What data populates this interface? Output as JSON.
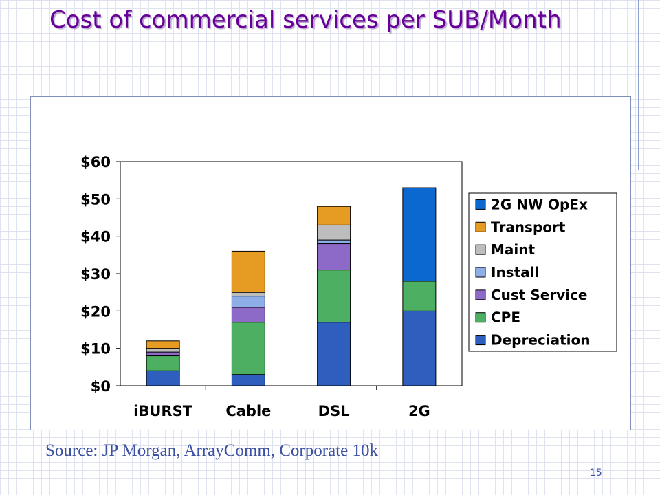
{
  "slide": {
    "title": "Cost of commercial services per SUB/Month",
    "source": "Source: JP Morgan, ArrayComm, Corporate 10k",
    "page_number": "15"
  },
  "chart_data": {
    "type": "bar",
    "stacked": true,
    "title": "",
    "xlabel": "",
    "ylabel": "",
    "ylim": [
      0,
      60
    ],
    "yticks": [
      0,
      10,
      20,
      30,
      40,
      50,
      60
    ],
    "ytick_labels": [
      "$0",
      "$10",
      "$20",
      "$30",
      "$40",
      "$50",
      "$60"
    ],
    "grid": false,
    "legend_position": "right",
    "categories": [
      "iBURST",
      "Cable",
      "DSL",
      "2G"
    ],
    "series": [
      {
        "name": "Depreciation",
        "color": "#2e5fbf",
        "values": [
          4,
          3,
          17,
          20
        ]
      },
      {
        "name": "CPE",
        "color": "#4daf62",
        "values": [
          4,
          14,
          14,
          8
        ]
      },
      {
        "name": "Cust Service",
        "color": "#8e6ac8",
        "values": [
          1,
          4,
          7,
          0
        ]
      },
      {
        "name": "Install",
        "color": "#8eaee8",
        "values": [
          0,
          3,
          1,
          0
        ]
      },
      {
        "name": "Maint",
        "color": "#bdbdbd",
        "values": [
          1,
          1,
          4,
          0
        ]
      },
      {
        "name": "Transport",
        "color": "#e69b22",
        "values": [
          2,
          11,
          5,
          0
        ]
      },
      {
        "name": "2G NW OpEx",
        "color": "#0b68d0",
        "values": [
          0,
          0,
          0,
          25
        ]
      }
    ]
  }
}
